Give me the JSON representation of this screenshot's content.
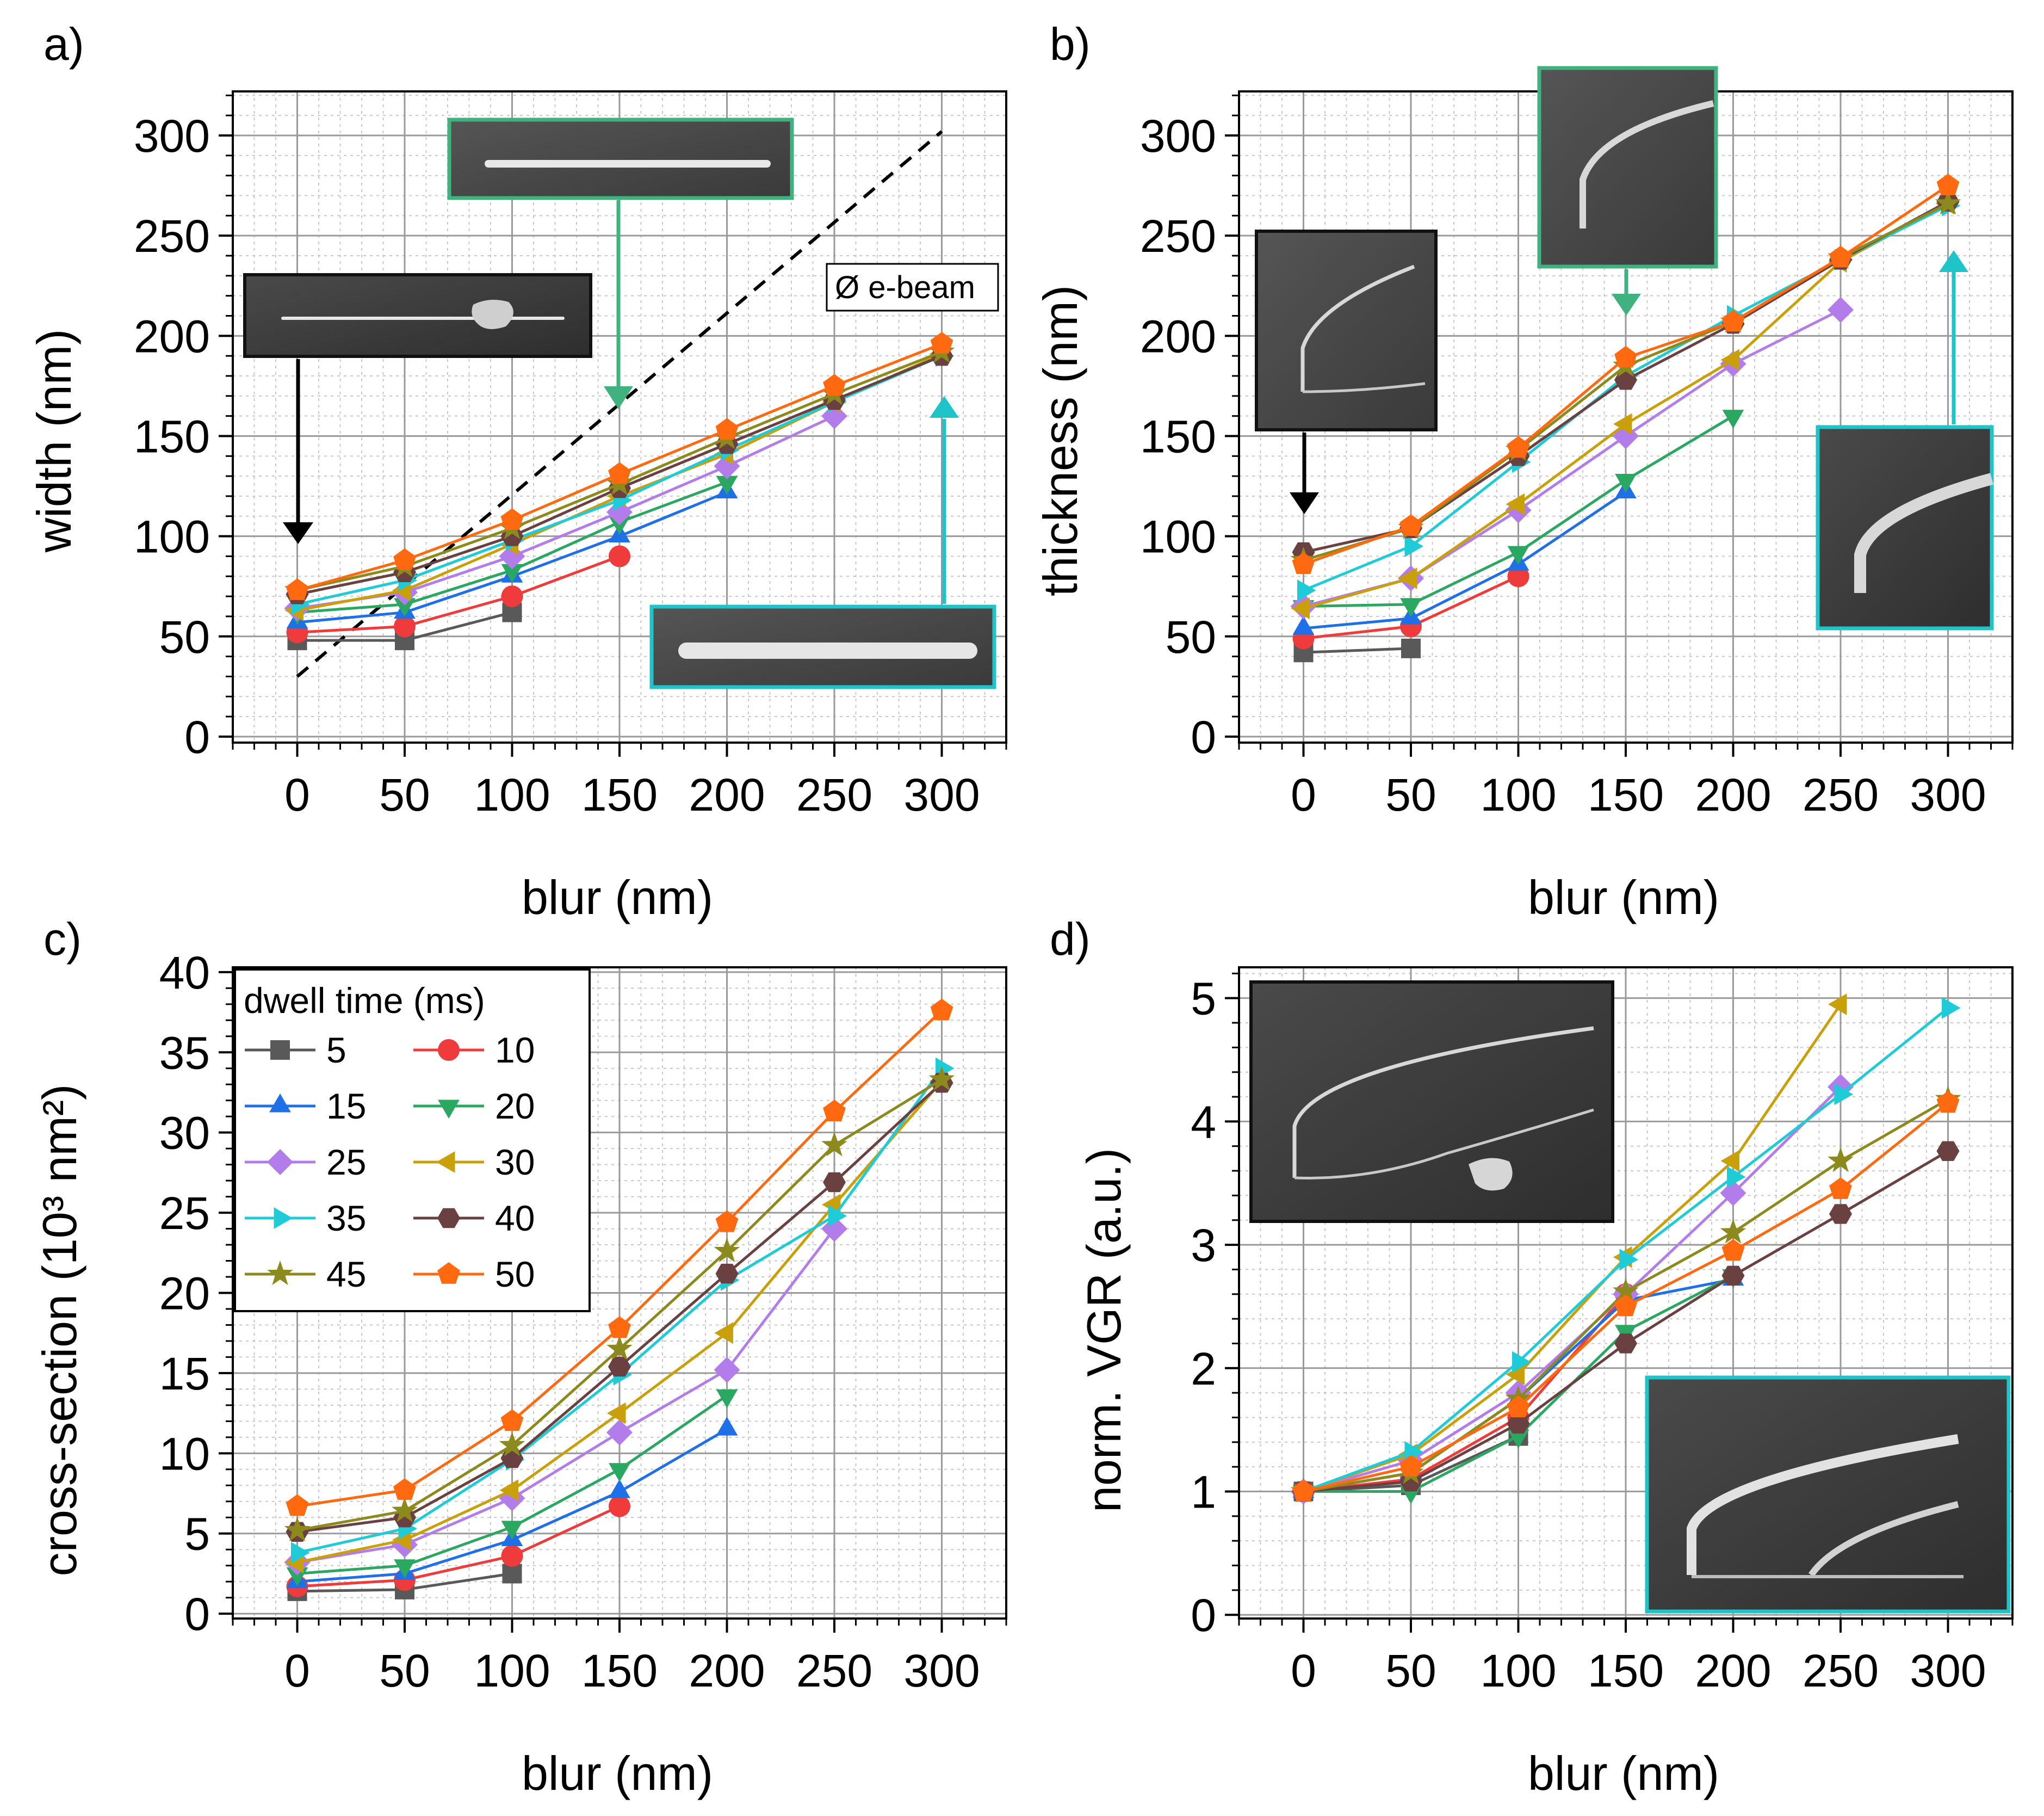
{
  "colors": {
    "s5": "#595959",
    "s10": "#ef3b3b",
    "s15": "#1f6fe6",
    "s20": "#2aa760",
    "s25": "#b27dea",
    "s30": "#c9a00a",
    "s35": "#1fcbd6",
    "s40": "#6b4040",
    "s45": "#8c8a1c",
    "s50": "#ff6a10",
    "frame_green": "#3fb27f",
    "frame_cyan": "#1fc4c9",
    "frame_black": "#1a1a1a"
  },
  "legend": {
    "title": "dwell time (ms)",
    "entries": [
      "5",
      "10",
      "15",
      "20",
      "25",
      "30",
      "35",
      "40",
      "45",
      "50"
    ]
  },
  "annotation": {
    "beam_label": "Ø e-beam"
  },
  "chart_data": [
    {
      "panel": "a)",
      "type": "line",
      "xlabel": "blur (nm)",
      "ylabel": "width (nm)",
      "xlim": [
        -30,
        330
      ],
      "ylim": [
        -3,
        322
      ],
      "xticks": [
        0,
        50,
        100,
        150,
        200,
        250,
        300
      ],
      "yticks": [
        0,
        50,
        100,
        150,
        200,
        250,
        300
      ],
      "x": [
        0,
        50,
        100,
        150,
        200,
        250,
        300
      ],
      "dashed_line": {
        "x": [
          0,
          300
        ],
        "y": [
          30,
          302
        ]
      },
      "series": [
        {
          "name": "5",
          "values": [
            48,
            48,
            62,
            null,
            null,
            null,
            null
          ]
        },
        {
          "name": "10",
          "values": [
            52,
            55,
            70,
            90,
            null,
            null,
            null
          ]
        },
        {
          "name": "15",
          "values": [
            57,
            62,
            80,
            100,
            122,
            null,
            null
          ]
        },
        {
          "name": "20",
          "values": [
            62,
            66,
            83,
            107,
            127,
            null,
            null
          ]
        },
        {
          "name": "25",
          "values": [
            64,
            72,
            90,
            112,
            135,
            160,
            null
          ]
        },
        {
          "name": "30",
          "values": [
            63,
            73,
            96,
            120,
            141,
            167,
            191
          ]
        },
        {
          "name": "35",
          "values": [
            66,
            78,
            98,
            118,
            143,
            167,
            190
          ]
        },
        {
          "name": "40",
          "values": [
            71,
            82,
            100,
            124,
            146,
            168,
            190
          ]
        },
        {
          "name": "45",
          "values": [
            73,
            85,
            104,
            126,
            149,
            171,
            192
          ]
        },
        {
          "name": "50",
          "values": [
            73,
            88,
            108,
            131,
            153,
            175,
            196
          ]
        }
      ]
    },
    {
      "panel": "b)",
      "type": "line",
      "xlabel": "blur (nm)",
      "ylabel": "thickness (nm)",
      "xlim": [
        -30,
        330
      ],
      "ylim": [
        -3,
        322
      ],
      "xticks": [
        0,
        50,
        100,
        150,
        200,
        250,
        300
      ],
      "yticks": [
        0,
        50,
        100,
        150,
        200,
        250,
        300
      ],
      "x": [
        0,
        50,
        100,
        150,
        200,
        250,
        300
      ],
      "series": [
        {
          "name": "5",
          "values": [
            42,
            44,
            null,
            null,
            null,
            null,
            null
          ]
        },
        {
          "name": "10",
          "values": [
            49,
            55,
            80,
            null,
            null,
            null,
            null
          ]
        },
        {
          "name": "15",
          "values": [
            54,
            59,
            86,
            122,
            null,
            null,
            null
          ]
        },
        {
          "name": "20",
          "values": [
            65,
            66,
            92,
            128,
            160,
            null,
            null
          ]
        },
        {
          "name": "25",
          "values": [
            65,
            79,
            113,
            150,
            186,
            213,
            null
          ]
        },
        {
          "name": "30",
          "values": [
            64,
            79,
            116,
            156,
            188,
            237,
            266
          ]
        },
        {
          "name": "35",
          "values": [
            73,
            95,
            137,
            180,
            210,
            238,
            265
          ]
        },
        {
          "name": "40",
          "values": [
            92,
            104,
            140,
            178,
            206,
            238,
            267
          ]
        },
        {
          "name": "45",
          "values": [
            88,
            104,
            143,
            185,
            207,
            239,
            266
          ]
        },
        {
          "name": "50",
          "values": [
            86,
            105,
            144,
            189,
            207,
            239,
            275
          ]
        }
      ]
    },
    {
      "panel": "c)",
      "type": "line",
      "xlabel": "blur (nm)",
      "ylabel": "cross-section (10³ nm²)",
      "xlim": [
        -30,
        330
      ],
      "ylim": [
        -0.3,
        40.3
      ],
      "xticks": [
        0,
        50,
        100,
        150,
        200,
        250,
        300
      ],
      "yticks": [
        0,
        5,
        10,
        15,
        20,
        25,
        30,
        35,
        40
      ],
      "x": [
        0,
        50,
        100,
        150,
        200,
        250,
        300
      ],
      "series": [
        {
          "name": "5",
          "values": [
            1.4,
            1.5,
            2.5,
            null,
            null,
            null,
            null
          ]
        },
        {
          "name": "10",
          "values": [
            1.7,
            2.1,
            3.6,
            6.7,
            null,
            null,
            null
          ]
        },
        {
          "name": "15",
          "values": [
            2.0,
            2.5,
            4.6,
            7.6,
            11.5,
            null,
            null
          ]
        },
        {
          "name": "20",
          "values": [
            2.5,
            3.0,
            5.4,
            9.0,
            13.6,
            null,
            null
          ]
        },
        {
          "name": "25",
          "values": [
            3.2,
            4.3,
            7.2,
            11.3,
            15.2,
            24.0,
            null
          ]
        },
        {
          "name": "30",
          "values": [
            3.2,
            4.6,
            7.7,
            12.5,
            17.5,
            25.5,
            33.2
          ]
        },
        {
          "name": "35",
          "values": [
            3.8,
            5.3,
            9.6,
            14.9,
            20.8,
            24.8,
            34.0
          ]
        },
        {
          "name": "40",
          "values": [
            5.1,
            6.0,
            9.7,
            15.4,
            21.2,
            26.9,
            33.1
          ]
        },
        {
          "name": "45",
          "values": [
            5.2,
            6.4,
            10.5,
            16.5,
            22.6,
            29.2,
            33.3
          ]
        },
        {
          "name": "50",
          "values": [
            6.7,
            7.7,
            12.0,
            17.8,
            24.4,
            31.3,
            37.6
          ]
        }
      ]
    },
    {
      "panel": "d)",
      "type": "line",
      "xlabel": "blur (nm)",
      "ylabel": "norm. VGR (a.u.)",
      "xlim": [
        -30,
        330
      ],
      "ylim": [
        -0.03,
        5.25
      ],
      "xticks": [
        0,
        50,
        100,
        150,
        200,
        250,
        300
      ],
      "yticks": [
        0,
        1,
        2,
        3,
        4,
        5
      ],
      "x": [
        0,
        50,
        100,
        150,
        200,
        250,
        300
      ],
      "series": [
        {
          "name": "5",
          "values": [
            1.0,
            1.05,
            1.45,
            null,
            null,
            null,
            null
          ]
        },
        {
          "name": "10",
          "values": [
            1.0,
            1.1,
            1.6,
            2.6,
            null,
            null,
            null
          ]
        },
        {
          "name": "15",
          "values": [
            1.0,
            1.15,
            1.75,
            2.55,
            2.72,
            null,
            null
          ]
        },
        {
          "name": "20",
          "values": [
            1.0,
            1.0,
            1.45,
            2.3,
            2.75,
            null,
            null
          ]
        },
        {
          "name": "25",
          "values": [
            1.0,
            1.25,
            1.8,
            2.6,
            3.42,
            4.28,
            null
          ]
        },
        {
          "name": "30",
          "values": [
            1.0,
            1.3,
            1.95,
            2.9,
            3.68,
            4.95,
            null
          ]
        },
        {
          "name": "35",
          "values": [
            1.0,
            1.32,
            2.05,
            2.88,
            3.55,
            4.22,
            4.92
          ]
        },
        {
          "name": "40",
          "values": [
            1.0,
            1.08,
            1.55,
            2.2,
            2.75,
            3.25,
            3.76
          ]
        },
        {
          "name": "45",
          "values": [
            1.0,
            1.15,
            1.75,
            2.62,
            3.1,
            3.68,
            4.18
          ]
        },
        {
          "name": "50",
          "values": [
            1.0,
            1.2,
            1.68,
            2.5,
            2.95,
            3.45,
            4.15
          ]
        }
      ]
    }
  ]
}
